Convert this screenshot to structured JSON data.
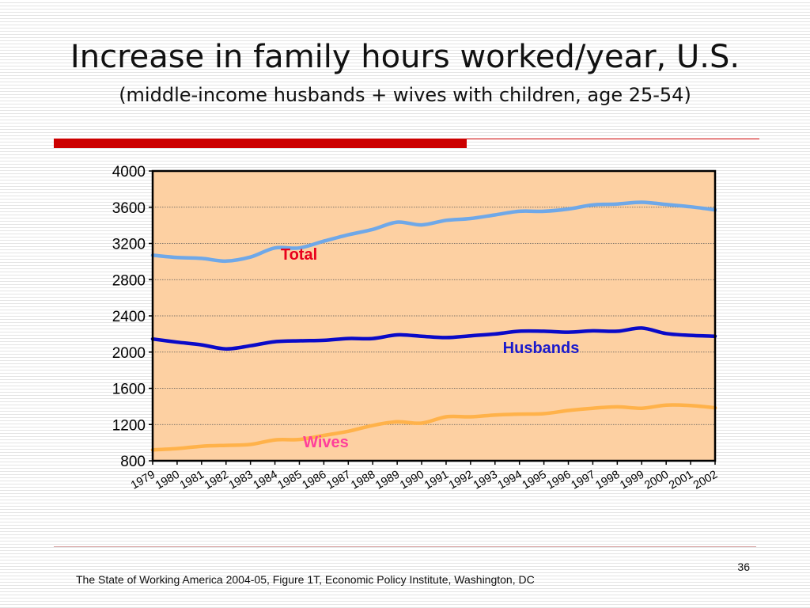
{
  "slide": {
    "title": "Increase in family hours worked/year, U.S.",
    "subtitle": "(middle-income husbands + wives with children, age 25-54)",
    "page_number": "36",
    "source": "The State of Working America 2004-05, Figure 1T, Economic Policy Institute, Washington, DC"
  },
  "colors": {
    "plot_background": "#fdd0a2",
    "accent_bar": "#cc0000",
    "total": "#6fa8e8",
    "husbands": "#0a0ac8",
    "wives": "#ffb24a",
    "label_total": "#e8001c",
    "label_husbands": "#1a1acc",
    "label_wives": "#ff3f9a"
  },
  "chart_data": {
    "type": "line",
    "title": "",
    "xlabel": "",
    "ylabel": "",
    "ylim": [
      800,
      4000
    ],
    "yticks": [
      800,
      1200,
      1600,
      2000,
      2400,
      2800,
      3200,
      3600,
      4000
    ],
    "grid": true,
    "x": [
      "1979",
      "1980",
      "1981",
      "1982",
      "1983",
      "1984",
      "1985",
      "1986",
      "1987",
      "1988",
      "1989",
      "1990",
      "1991",
      "1992",
      "1993",
      "1994",
      "1995",
      "1996",
      "1997",
      "1998",
      "1999",
      "2000",
      "2001",
      "2002"
    ],
    "series": [
      {
        "name": "Total",
        "color": "#6fa8e8",
        "values": [
          3070,
          3045,
          3035,
          3005,
          3050,
          3150,
          3150,
          3225,
          3295,
          3355,
          3435,
          3405,
          3455,
          3475,
          3515,
          3555,
          3555,
          3580,
          3625,
          3635,
          3655,
          3630,
          3605,
          3570
        ]
      },
      {
        "name": "Husbands",
        "color": "#0a0ac8",
        "values": [
          2145,
          2110,
          2080,
          2035,
          2070,
          2115,
          2125,
          2130,
          2150,
          2150,
          2190,
          2175,
          2160,
          2180,
          2200,
          2230,
          2230,
          2220,
          2235,
          2230,
          2265,
          2205,
          2185,
          2175
        ]
      },
      {
        "name": "Wives",
        "color": "#ffb24a",
        "values": [
          920,
          935,
          960,
          970,
          980,
          1030,
          1035,
          1080,
          1125,
          1190,
          1230,
          1215,
          1285,
          1285,
          1305,
          1315,
          1320,
          1355,
          1380,
          1395,
          1380,
          1415,
          1410,
          1385
        ]
      }
    ]
  }
}
